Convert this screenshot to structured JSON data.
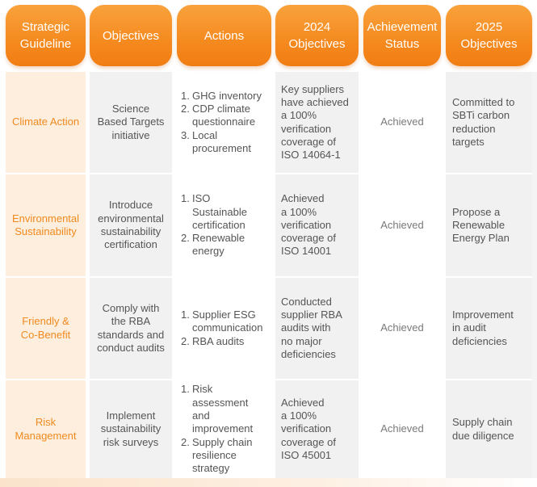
{
  "headers": {
    "guideline": "Strategic\nGuideline",
    "objectives": "Objectives",
    "actions": "Actions",
    "obj2024": "2024\nObjectives",
    "status": "Achievement\nStatus",
    "obj2025": "2025\nObjectives"
  },
  "rows": [
    {
      "guideline": "Climate Action",
      "objective": "Science\nBased Targets\ninitiative",
      "actions": [
        {
          "num": "1.",
          "text": "GHG inventory"
        },
        {
          "num": "2.",
          "text": "CDP climate\nquestionnaire"
        },
        {
          "num": "3.",
          "text": "Local\nprocurement"
        }
      ],
      "obj2024": "Key suppliers\nhave achieved\na 100%\nverification\ncoverage of\nISO 14064-1",
      "status": "Achieved",
      "obj2025": "Committed to\nSBTi carbon\nreduction\ntargets"
    },
    {
      "guideline": "Environmental\nSustainability",
      "objective": "Introduce\nenvironmental\nsustainability\ncertification",
      "actions": [
        {
          "num": "1.",
          "text": "ISO\nSustainable\ncertification"
        },
        {
          "num": "2.",
          "text": "Renewable\nenergy"
        }
      ],
      "obj2024": "Achieved\na 100%\nverification\ncoverage of\nISO 14001",
      "status": "Achieved",
      "obj2025": "Propose a\nRenewable\nEnergy Plan"
    },
    {
      "guideline": "Friendly &\nCo-Benefit",
      "objective": "Comply with\nthe RBA\nstandards and\nconduct audits",
      "actions": [
        {
          "num": "1.",
          "text": "Supplier ESG\ncommunication"
        },
        {
          "num": "2.",
          "text": "RBA audits"
        }
      ],
      "obj2024": "Conducted\nsupplier RBA\naudits with\nno major\ndeficiencies",
      "status": "Achieved",
      "obj2025": "Improvement\nin audit\ndeficiencies"
    },
    {
      "guideline": "Risk\nManagement",
      "objective": "Implement\nsustainability\nrisk surveys",
      "actions": [
        {
          "num": "1.",
          "text": "Risk\nassessment\nand\nimprovement"
        },
        {
          "num": "2.",
          "text": "Supply chain\nresilience\nstrategy"
        }
      ],
      "obj2024": "Achieved\na 100%\nverification\ncoverage of\nISO 45001",
      "status": "Achieved",
      "obj2025": "Supply chain\ndue diligence"
    }
  ]
}
